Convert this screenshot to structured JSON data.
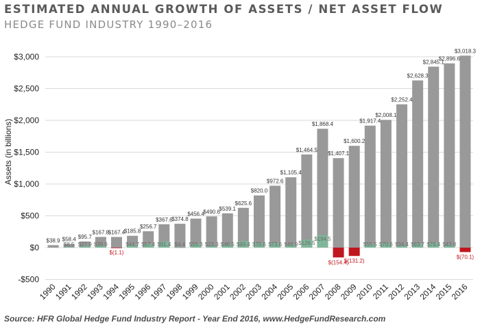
{
  "title": "ESTIMATED ANNUAL GROWTH OF ASSETS / NET ASSET FLOW",
  "subtitle": "HEDGE FUND INDUSTRY 1990–2016",
  "source": "Source: HFR Global Hedge Fund Industry Report - Year End 2016, www.HedgeFundResearch.com",
  "colors": {
    "assets": "#999999",
    "positive_flow": "#7fb69a",
    "negative_flow": "#c0161e",
    "asset_label": "#333333",
    "positive_flow_label": "#6a6a6a",
    "negative_flow_label": "#c0161e",
    "axis_text": "#222222",
    "gridline": "#d9d9d9"
  },
  "chart_data": {
    "type": "bar",
    "ylabel": "Assets (in billions)",
    "ylim": [
      -500,
      3000
    ],
    "yticks": [
      -500,
      0,
      500,
      1000,
      1500,
      2000,
      2500,
      3000
    ],
    "ytick_labels": [
      "-$500",
      "$0",
      "$500",
      "$1,000",
      "$1,500",
      "$2,000",
      "$2,500",
      "$3,000"
    ],
    "grid": true,
    "categories": [
      "1990",
      "1991",
      "1992",
      "1993",
      "1994",
      "1995",
      "1996",
      "1997",
      "1998",
      "1999",
      "2000",
      "2001",
      "2002",
      "2003",
      "2004",
      "2005",
      "2006",
      "2007",
      "2008",
      "2009",
      "2010",
      "2011",
      "2012",
      "2013",
      "2014",
      "2015",
      "2016"
    ],
    "series": [
      {
        "values": [
          38.9,
          58.4,
          95.7,
          167.8,
          167.4,
          185.8,
          256.7,
          367.6,
          374.8,
          456.4,
          490.6,
          539.1,
          625.6,
          820.0,
          972.6,
          1105.4,
          1464.5,
          1868.4,
          1407.1,
          1600.2,
          1917.4,
          2008.1,
          2252.4,
          2628.3,
          2845.1,
          2896.6,
          3018.3
        ],
        "labels": [
          "$38.9",
          "$58.4",
          "$95.7",
          "$167.8",
          "$167.4",
          "$185.8",
          "$256.7",
          "$367.6",
          "$374.8",
          "$456.4",
          "$490.6",
          "$539.1",
          "$625.6",
          "$820.0",
          "$972.6",
          "$1,105.4",
          "$1,464.5",
          "$1,868.4",
          "$1,407.1",
          "$1,600.2",
          "$1,917.4",
          "$2,008.1",
          "$2,252.4",
          "$2,628.3",
          "$2,845.1",
          "$2,896.6",
          "$3,018.3"
        ]
      },
      {
        "values": [
          null,
          8.5,
          27.9,
          38.9,
          -1.1,
          44.7,
          57.4,
          91.4,
          4.4,
          55.3,
          23.3,
          46.5,
          99.4,
          70.6,
          73.6,
          46.9,
          126.5,
          194.5,
          -154.4,
          -131.2,
          55.5,
          70.6,
          34.4,
          63.7,
          76.4,
          43.8,
          -70.1
        ],
        "labels": [
          "",
          "$8.5",
          "$27.9",
          "$38.9",
          "$(1.1)",
          "$44.7",
          "$57.4",
          "$91.4",
          "$4.4",
          "$55.3",
          "$23.3",
          "$46.5",
          "$99.4",
          "$70.6",
          "$73.6",
          "$46.9",
          "$126.5",
          "$194.5",
          "$(154.4)",
          "$(131.2)",
          "$55.5",
          "$70.6",
          "$34.4",
          "$63.7",
          "$76.4",
          "$43.8",
          "$(70.1)"
        ]
      }
    ]
  }
}
